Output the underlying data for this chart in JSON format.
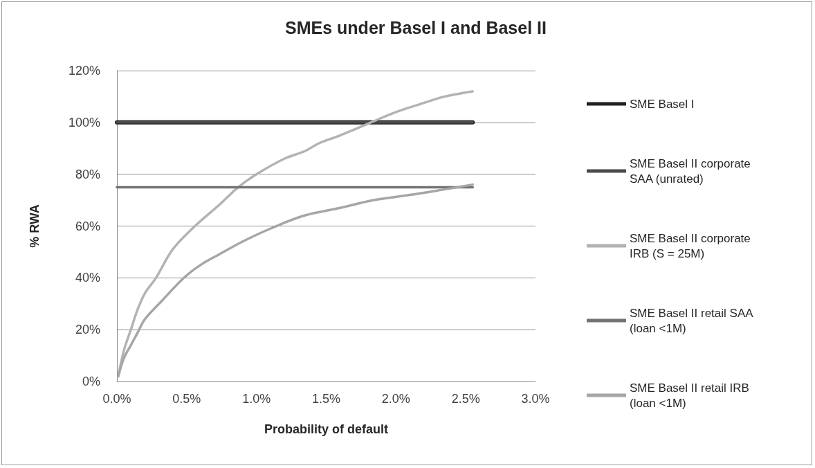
{
  "chart_data": {
    "type": "line",
    "title": "SMEs under Basel I and Basel II",
    "xlabel": "Probability of default",
    "ylabel": "% RWA",
    "xlim": [
      0,
      3
    ],
    "xticks": [
      {
        "value": 0,
        "label": "0.0%"
      },
      {
        "value": 0.5,
        "label": "0.5%"
      },
      {
        "value": 1,
        "label": "1.0%"
      },
      {
        "value": 1.5,
        "label": "1.5%"
      },
      {
        "value": 2,
        "label": "2.0%"
      },
      {
        "value": 2.5,
        "label": "2.5%"
      },
      {
        "value": 3,
        "label": "3.0%"
      }
    ],
    "ylim": [
      0,
      120
    ],
    "yticks": [
      {
        "value": 0,
        "label": "0%"
      },
      {
        "value": 20,
        "label": "20%"
      },
      {
        "value": 40,
        "label": "40%"
      },
      {
        "value": 60,
        "label": "60%"
      },
      {
        "value": 80,
        "label": "80%"
      },
      {
        "value": 100,
        "label": "100%"
      },
      {
        "value": 120,
        "label": "120%"
      }
    ],
    "grid": "y",
    "legend": "right",
    "marker": "none",
    "line_style": "solid",
    "series": [
      {
        "name": "SME Basel I",
        "color": "#1f1f1f",
        "x": [
          0,
          2.55
        ],
        "values": [
          100,
          100
        ]
      },
      {
        "name": "SME Basel II corporate SAA (unrated)",
        "color": "#4a4a4a",
        "x": [
          0,
          2.55
        ],
        "values": [
          100,
          100
        ]
      },
      {
        "name": "SME Basel II corporate IRB (S = 25M)",
        "color": "#b3b3b3",
        "x": [
          0.01,
          0.05,
          0.1,
          0.15,
          0.2,
          0.28,
          0.4,
          0.56,
          0.73,
          0.87,
          1,
          1.2,
          1.35,
          1.45,
          1.6,
          1.82,
          2,
          2.17,
          2.35,
          2.55
        ],
        "values": [
          2,
          12,
          20,
          28,
          34,
          40,
          51,
          60,
          68,
          75,
          80,
          86,
          89,
          92,
          95,
          100,
          104,
          107,
          110,
          112
        ]
      },
      {
        "name": "SME Basel II retail SAA (loan <1M)",
        "color": "#737373",
        "x": [
          0,
          2.55
        ],
        "values": [
          75,
          75
        ]
      },
      {
        "name": "SME Basel II retail IRB (loan <1M)",
        "color": "#a6a6a6",
        "x": [
          0.01,
          0.05,
          0.1,
          0.15,
          0.2,
          0.32,
          0.48,
          0.6,
          0.73,
          0.9,
          1.1,
          1.34,
          1.6,
          1.84,
          2.1,
          2.33,
          2.55
        ],
        "values": [
          2,
          9,
          14,
          19,
          24,
          31,
          40,
          45,
          49,
          54,
          59,
          64,
          67,
          70,
          72,
          74,
          76
        ]
      }
    ]
  }
}
